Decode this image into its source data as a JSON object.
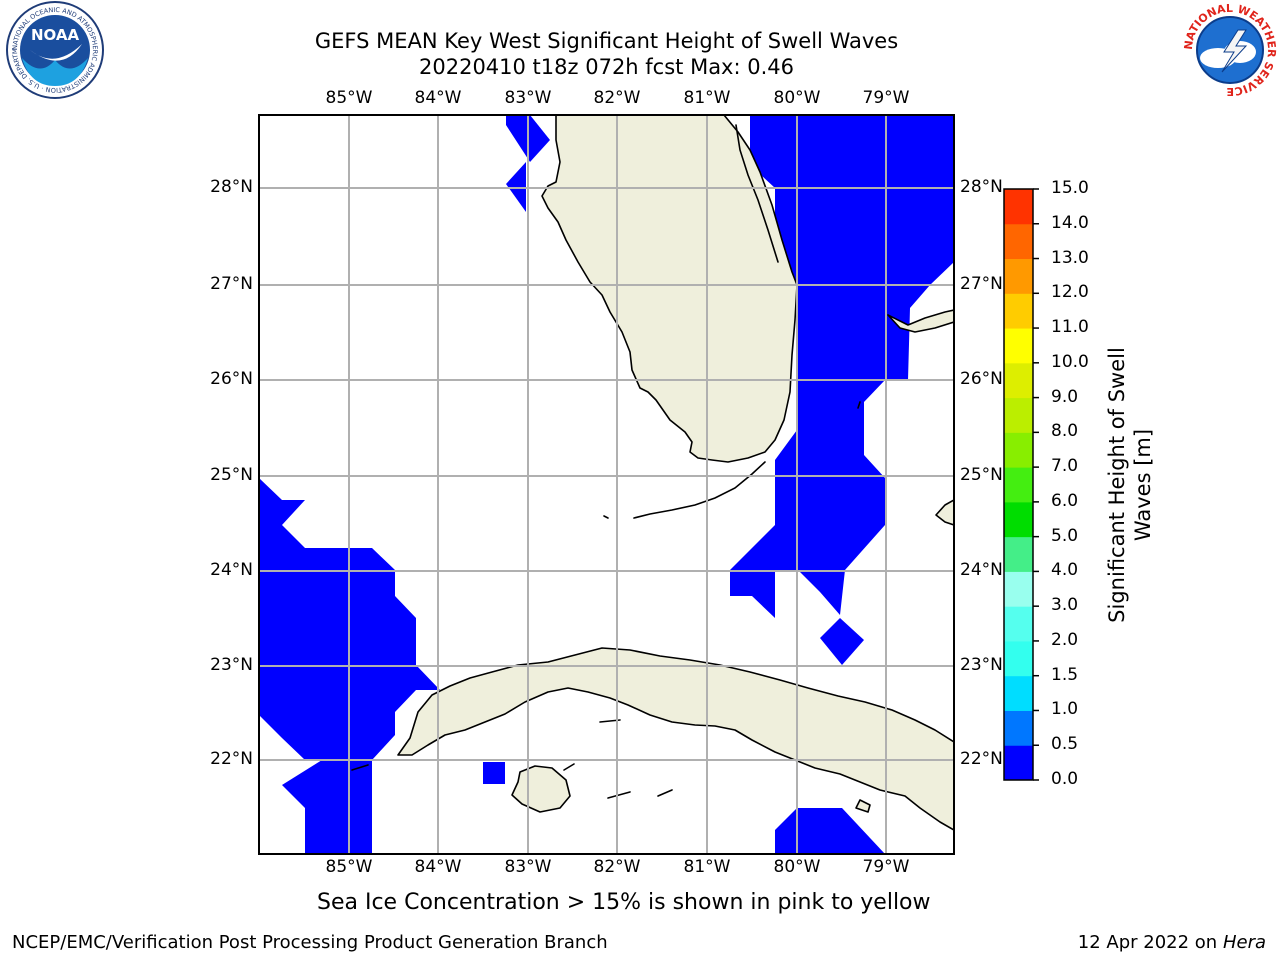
{
  "header": {
    "title_line1": "GEFS MEAN Key West Significant Height of Swell Waves",
    "title_line2": "20220410 t18z 072h fcst   Max: 0.46"
  },
  "logos": {
    "left_name": "NOAA",
    "left_ring_text": "NATIONAL OCEANIC AND ATMOSPHERIC ADMINISTRATION · U.S. DEPARTMENT OF COMMERCE",
    "right_ring_text": "NATIONAL WEATHER SERVICE"
  },
  "map": {
    "lon_labels": [
      "85°W",
      "84°W",
      "83°W",
      "82°W",
      "81°W",
      "80°W",
      "79°W"
    ],
    "lat_labels": [
      "28°N",
      "27°N",
      "26°N",
      "25°N",
      "24°N",
      "23°N",
      "22°N"
    ],
    "extent": {
      "lon": [
        -86.0,
        -78.25
      ],
      "lat": [
        21.0,
        28.75
      ]
    },
    "gridlines": true,
    "colors": {
      "land": "#efefdc",
      "swell_0_0.5": "#0000ff",
      "grid": "#b0b0b0",
      "coast": "#000000"
    }
  },
  "colorbar": {
    "label_line1": "Significant Height of Swell",
    "label_line2": "Waves [m]",
    "levels": [
      "0.0",
      "0.5",
      "1.0",
      "1.5",
      "2.0",
      "3.0",
      "4.0",
      "5.0",
      "6.0",
      "7.0",
      "8.0",
      "9.0",
      "10.0",
      "11.0",
      "12.0",
      "13.0",
      "14.0",
      "15.0"
    ],
    "colors": [
      "#0000ff",
      "#0077ff",
      "#00ddff",
      "#33ffee",
      "#55ffee",
      "#99ffee",
      "#44ee88",
      "#00dd00",
      "#44ee11",
      "#88ee00",
      "#bbee00",
      "#ddee00",
      "#ffff00",
      "#ffcc00",
      "#ff9900",
      "#ff6600",
      "#ff3300",
      "#ff0000"
    ]
  },
  "note": "Sea Ice Concentration > 15% is shown in pink to yellow",
  "footer": {
    "left": "NCEP/EMC/Verification Post Processing Product Generation Branch",
    "right_prefix": "12 Apr 2022 on ",
    "right_host": "Hera"
  }
}
